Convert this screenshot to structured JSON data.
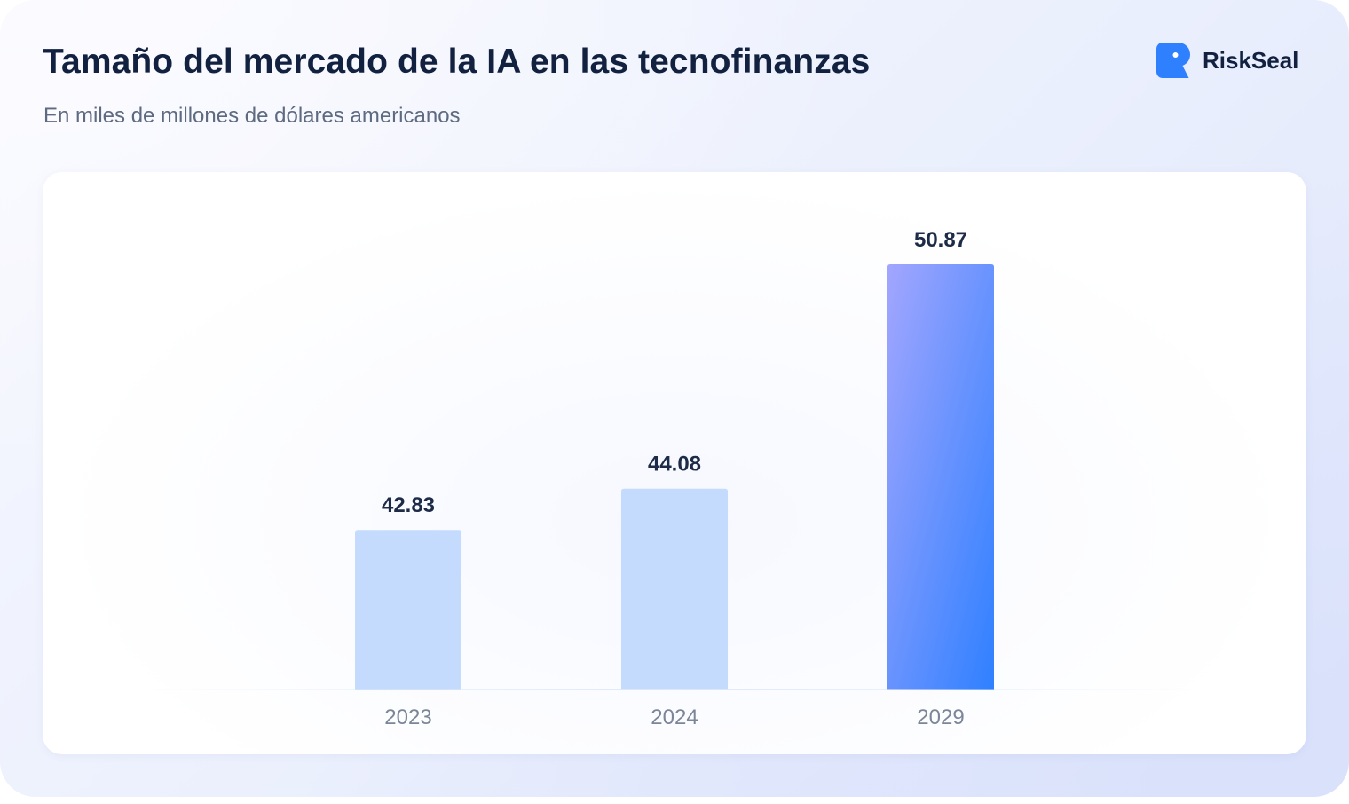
{
  "header": {
    "title": "Tamaño del mercado de la IA en las tecnofinanzas",
    "subtitle": "En miles de millones de dólares americanos"
  },
  "brand": {
    "name": "RiskSeal",
    "icon": "riskseal-logo-icon",
    "color": "#2f80ff"
  },
  "colors": {
    "bar_default": "#c4dbfe",
    "bar_highlight_start": "#a2a6fe",
    "bar_highlight_end": "#2f80ff",
    "axis_line": "#dde8fa",
    "title": "#11213f",
    "subtitle": "#5d6a80"
  },
  "chart_data": {
    "type": "bar",
    "categories": [
      "2023",
      "2024",
      "2029"
    ],
    "values": [
      42.83,
      44.08,
      50.87
    ],
    "value_labels": [
      "42.83",
      "44.08",
      "50.87"
    ],
    "highlight": "2029",
    "title": "Tamaño del mercado de la IA en las tecnofinanzas",
    "subtitle": "En miles de millones de dólares americanos",
    "xlabel": "",
    "ylabel": "",
    "ylim": [
      0,
      50.87
    ],
    "grid": false,
    "legend": "none"
  }
}
